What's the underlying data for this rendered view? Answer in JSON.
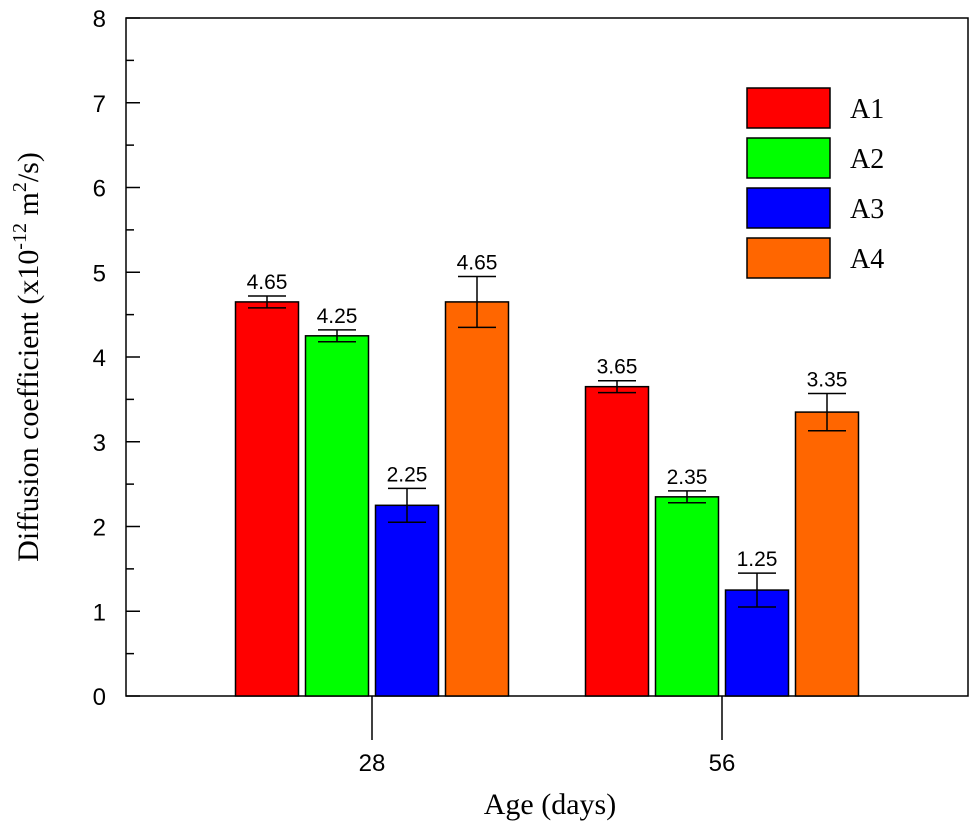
{
  "chart_data": {
    "type": "bar",
    "title": "",
    "xlabel": "Age (days)",
    "ylabel_main": "Diffusion coefficient (x10",
    "ylabel_exp": "-12",
    "ylabel_unit": " m",
    "ylabel_unit_exp": "2",
    "ylabel_tail": "/s)",
    "categories": [
      "28",
      "56"
    ],
    "ylim": [
      0,
      8
    ],
    "yticks": [
      "0",
      "1",
      "2",
      "3",
      "4",
      "5",
      "6",
      "7",
      "8"
    ],
    "grid": false,
    "legend_placement": "top-right",
    "series": [
      {
        "name": "A1",
        "color": "#ff0000",
        "values": [
          4.65,
          3.65
        ],
        "errors": [
          0.07,
          0.07
        ],
        "labels": [
          "4.65",
          "3.65"
        ]
      },
      {
        "name": "A2",
        "color": "#00ff00",
        "values": [
          4.25,
          2.35
        ],
        "errors": [
          0.07,
          0.07
        ],
        "labels": [
          "4.25",
          "2.35"
        ]
      },
      {
        "name": "A3",
        "color": "#0000ff",
        "values": [
          2.25,
          1.25
        ],
        "errors": [
          0.2,
          0.2
        ],
        "labels": [
          "2.25",
          "1.25"
        ]
      },
      {
        "name": "A4",
        "color": "#ff6600",
        "values": [
          4.65,
          3.35
        ],
        "errors": [
          0.3,
          0.22
        ],
        "labels": [
          "4.65",
          "3.35"
        ]
      }
    ]
  }
}
